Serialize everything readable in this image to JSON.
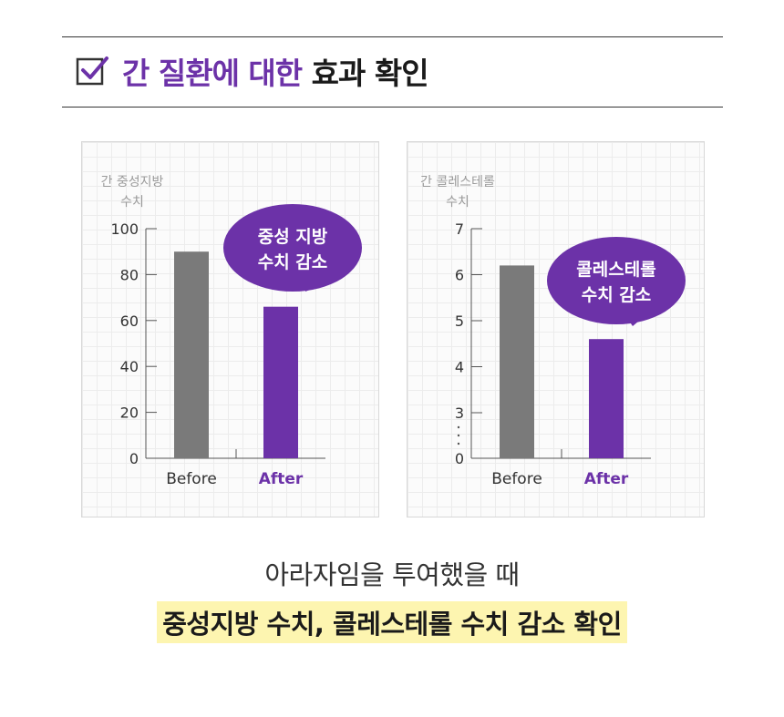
{
  "header": {
    "title_highlight": "간 질환에 대한",
    "title_rest": "효과 확인",
    "icon": "checkbox-checked-icon",
    "accent_color": "#6c32a8"
  },
  "chart_data": [
    {
      "type": "bar",
      "ylabel_line1": "간 중성지방",
      "ylabel_line2": "수치",
      "categories": [
        "Before",
        "After"
      ],
      "values": [
        90,
        66
      ],
      "ylim": [
        0,
        100
      ],
      "yticks": [
        "0",
        "20",
        "40",
        "60",
        "80",
        "100"
      ],
      "bar_colors": [
        "#7a7a7a",
        "#6c32a8"
      ],
      "callout_line1": "중성 지방",
      "callout_line2": "수치 감소",
      "grid": true
    },
    {
      "type": "bar",
      "ylabel_line1": "간 콜레스테롤",
      "ylabel_line2": "수치",
      "categories": [
        "Before",
        "After"
      ],
      "values": [
        6.2,
        4.6
      ],
      "ylim": [
        3,
        7
      ],
      "axis_break": true,
      "yticks": [
        "0",
        "3",
        "4",
        "5",
        "6",
        "7"
      ],
      "bar_colors": [
        "#7a7a7a",
        "#6c32a8"
      ],
      "callout_line1": "콜레스테롤",
      "callout_line2": "수치 감소",
      "grid": true
    }
  ],
  "footer": {
    "line1": "아라자임을 투여했을 때",
    "line2": "중성지방 수치, 콜레스테롤 수치 감소 확인"
  }
}
